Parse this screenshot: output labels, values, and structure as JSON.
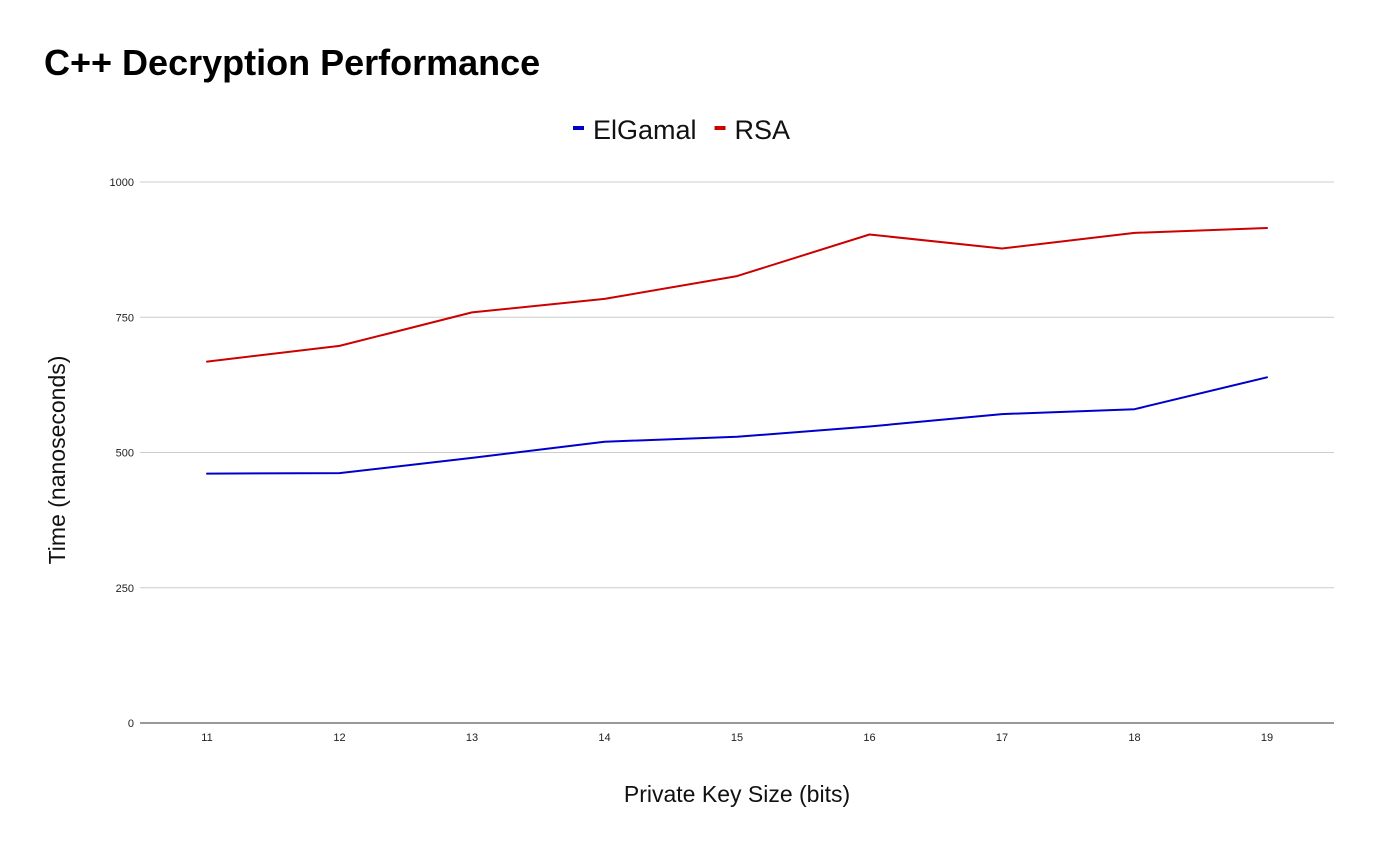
{
  "chart_data": {
    "type": "line",
    "title": "C++ Decryption Performance",
    "xlabel": "Private Key Size (bits)",
    "ylabel": "Time (nanoseconds)",
    "x": [
      11,
      12,
      13,
      14,
      15,
      16,
      17,
      18,
      19
    ],
    "x_tick_labels": [
      "11",
      "12",
      "13",
      "14",
      "15",
      "16",
      "17",
      "18",
      "19"
    ],
    "ylim": [
      0,
      1000
    ],
    "y_ticks": [
      0,
      250,
      500,
      750,
      1000
    ],
    "y_tick_labels": [
      "0",
      "250",
      "500",
      "750",
      "1000"
    ],
    "grid": true,
    "legend_position": "top-center",
    "series": [
      {
        "name": "ElGamal",
        "color": "#0000cc",
        "values": [
          461,
          462,
          490,
          520,
          529,
          548,
          571,
          580,
          639
        ]
      },
      {
        "name": "RSA",
        "color": "#cc0000",
        "values": [
          668,
          697,
          759,
          784,
          826,
          903,
          877,
          906,
          915
        ]
      }
    ]
  }
}
